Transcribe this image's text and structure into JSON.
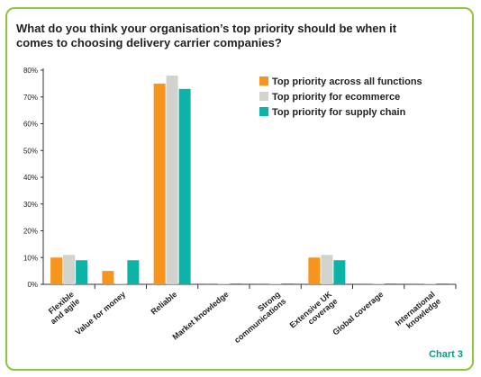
{
  "chart_data": {
    "type": "bar",
    "title": "What do you think your organisation’s top priority should be when it comes to choosing delivery carrier companies?",
    "categories": [
      [
        "Flexible",
        "and agile"
      ],
      [
        "Value for money"
      ],
      [
        "Reliable"
      ],
      [
        "Market knowledge"
      ],
      [
        "Strong",
        "communications"
      ],
      [
        "Extensive UK",
        "coverage"
      ],
      [
        "Global coverage"
      ],
      [
        "International",
        "knowledge"
      ]
    ],
    "series": [
      {
        "name": "Top priority across all functions",
        "color": "#f7941d",
        "values": [
          10,
          5,
          75,
          0,
          0,
          10,
          0,
          0
        ]
      },
      {
        "name": "Top priority for ecommerce",
        "color": "#d3d3cd",
        "values": [
          11,
          0,
          78,
          0,
          0,
          11,
          0,
          0
        ]
      },
      {
        "name": "Top priority for supply chain",
        "color": "#0db3a7",
        "values": [
          9,
          9,
          73,
          0,
          0,
          9,
          0,
          0
        ]
      }
    ],
    "yticks": [
      "0%",
      "10%",
      "20%",
      "30%",
      "40%",
      "50%",
      "60%",
      "70%",
      "80%"
    ],
    "ylim": [
      0,
      80
    ],
    "legend_position": "top-right",
    "grid": false
  },
  "footer": {
    "chart_label": "Chart 3"
  }
}
